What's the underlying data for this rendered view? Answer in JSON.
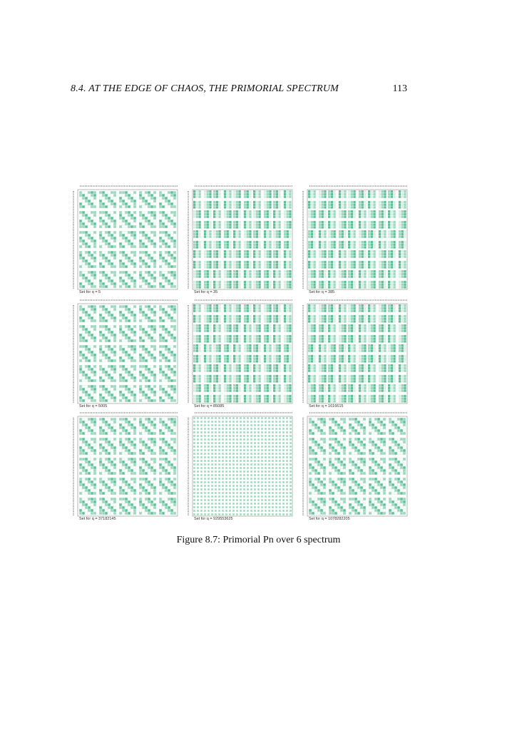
{
  "header": {
    "section_title": "8.4.  AT THE EDGE OF CHAOS, THE PRIMORIAL SPECTRUM",
    "page_number": "113"
  },
  "figure": {
    "caption": "Figure 8.7: Primorial Pn over 6 spectrum",
    "colors": {
      "dark": "#5fbf98",
      "mid": "#9bd8bd",
      "light": "#d7efe4",
      "frame": "#8a8a8a"
    },
    "panels": [
      {
        "label": "Set for q =  5",
        "pattern": "blocks"
      },
      {
        "label": "Set for q =  35",
        "pattern": "cross"
      },
      {
        "label": "Set for q =  385",
        "pattern": "cross"
      },
      {
        "label": "Set for q =  5005",
        "pattern": "blocks"
      },
      {
        "label": "Set for q =  85085",
        "pattern": "cross"
      },
      {
        "label": "Set for q =  1616615",
        "pattern": "cross"
      },
      {
        "label": "Set for q =  37182145",
        "pattern": "blocks"
      },
      {
        "label": "Set for q =  929553625",
        "pattern": "dots"
      },
      {
        "label": "Set for q =  1078282205",
        "pattern": "blocks"
      }
    ]
  }
}
